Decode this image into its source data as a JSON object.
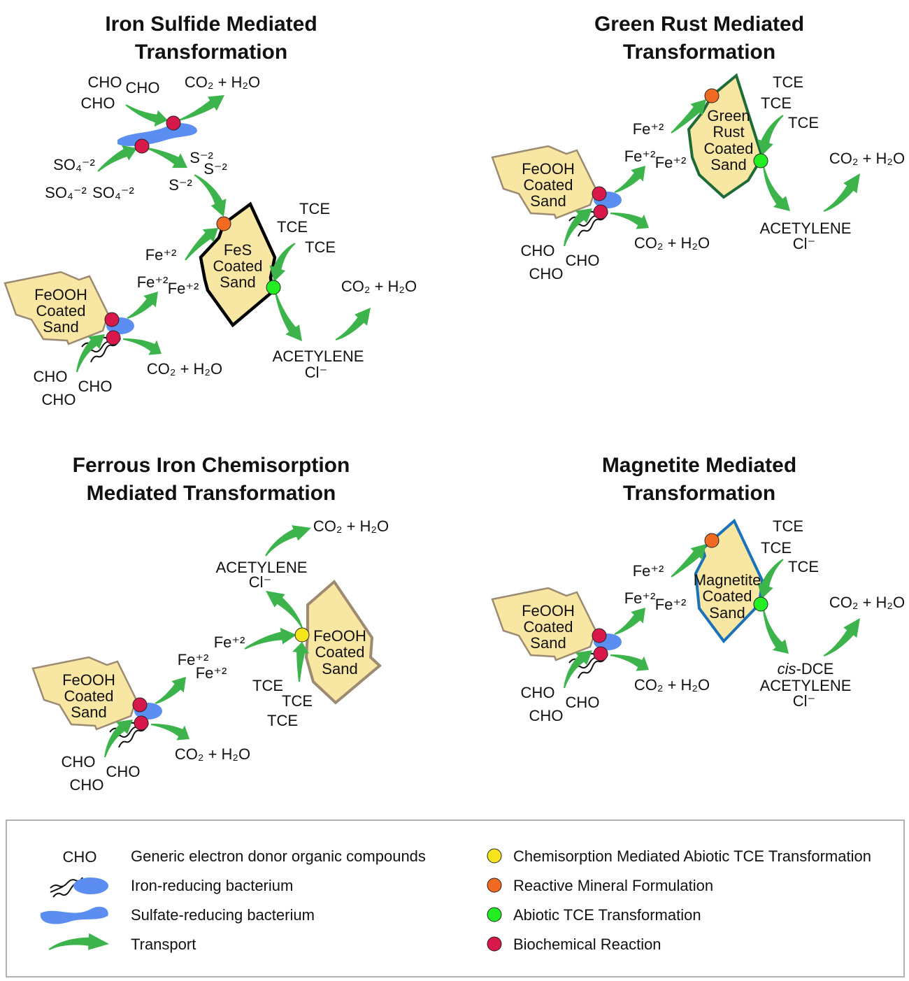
{
  "colors": {
    "transport_arrow": "#3cb44b",
    "bacterium": "#5b8ef0",
    "biochemical_dot": "#d8174b",
    "reactive_mineral_dot": "#f26a22",
    "abiotic_dot": "#22ee22",
    "chemisorption_dot": "#f7e51c",
    "sand_fill": "#f8e6a3",
    "feooh_outline": "#9c8a73",
    "fes_outline": "#000000",
    "green_rust_outline": "#1e6b38",
    "magnetite_outline": "#1b72b8"
  },
  "common": {
    "cho": "CHO",
    "co2_h2o": "CO₂ + H₂O",
    "fe2": "Fe⁺²",
    "tce": "TCE",
    "acetylene": "ACETYLENE",
    "chloride": "Cl⁻",
    "so4": "SO₄⁻²",
    "s2": "S⁻²",
    "cis_prefix": "cis",
    "dce_suffix": "-DCE",
    "feooh_sand": [
      "FeOOH",
      "Coated",
      "Sand"
    ]
  },
  "panels": {
    "iron_sulfide": {
      "title": [
        "Iron Sulfide Mediated",
        "Transformation"
      ],
      "mineral": [
        "FeS",
        "Coated",
        "Sand"
      ]
    },
    "green_rust": {
      "title": [
        "Green Rust Mediated",
        "Transformation"
      ],
      "mineral": [
        "Green",
        "Rust",
        "Coated",
        "Sand"
      ]
    },
    "ferrous_iron": {
      "title": [
        "Ferrous Iron Chemisorption",
        "Mediated Transformation"
      ],
      "mineral": [
        "FeOOH",
        "Coated",
        "Sand"
      ]
    },
    "magnetite": {
      "title": [
        "Magnetite Mediated",
        "Transformation"
      ],
      "mineral": [
        "Magnetite",
        "Coated",
        "Sand"
      ]
    }
  },
  "legend": {
    "left": [
      {
        "symbol": "CHO",
        "label": "Generic electron donor organic compounds",
        "icon": "cho-text"
      },
      {
        "label": "Iron-reducing bacterium",
        "icon": "iron-reducing-bacterium-icon"
      },
      {
        "label": "Sulfate-reducing bacterium",
        "icon": "sulfate-reducing-bacterium-icon"
      },
      {
        "label": "Transport",
        "icon": "transport-arrow-icon"
      }
    ],
    "right": [
      {
        "label": "Chemisorption Mediated Abiotic TCE Transformation",
        "color": "#f7e51c"
      },
      {
        "label": "Reactive Mineral Formulation",
        "color": "#f26a22"
      },
      {
        "label": "Abiotic TCE Transformation",
        "color": "#22ee22"
      },
      {
        "label": "Biochemical Reaction",
        "color": "#d8174b"
      }
    ]
  }
}
